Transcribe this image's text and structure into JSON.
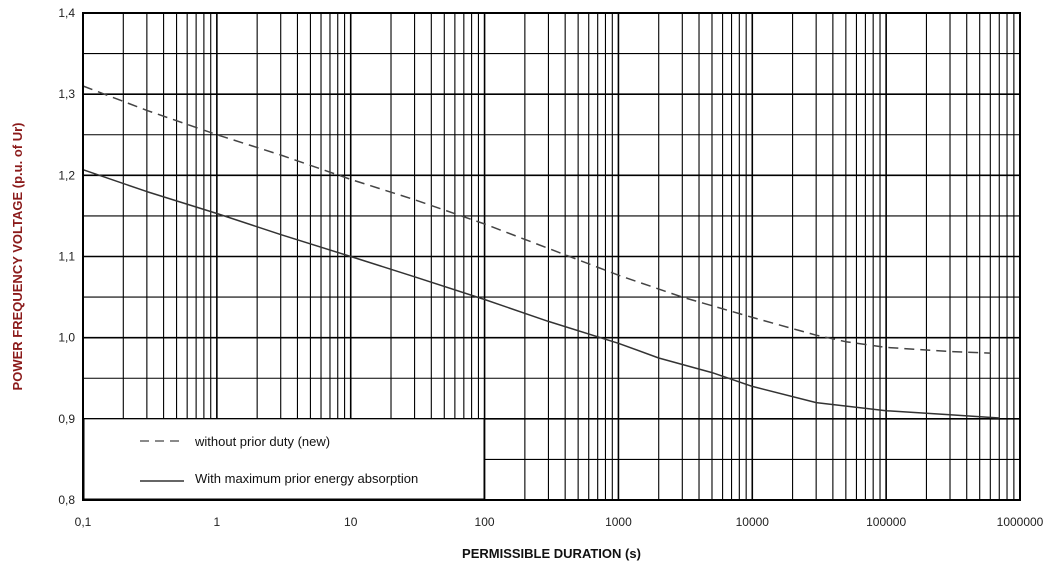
{
  "chart_data": {
    "type": "line",
    "xlabel": "PERMISSIBLE DURATION  (s)",
    "ylabel": "POWER FREQUENCY VOLTAGE  (p.u. of  Ur)",
    "x_scale": "log",
    "xlim": [
      0.1,
      1000000
    ],
    "ylim": [
      0.8,
      1.4
    ],
    "x_ticks": [
      0.1,
      1,
      10,
      100,
      1000,
      10000,
      100000,
      1000000
    ],
    "x_tick_labels": [
      "0,1",
      "1",
      "10",
      "100",
      "1000",
      "10000",
      "100000",
      "1000000"
    ],
    "y_ticks": [
      0.8,
      0.9,
      1.0,
      1.1,
      1.2,
      1.3,
      1.4
    ],
    "y_tick_labels": [
      "0,8",
      "0,9",
      "1,0",
      "1,1",
      "1,2",
      "1,3",
      "1,4"
    ],
    "grid": true,
    "legend_position": "bottom-left",
    "series": [
      {
        "name": "without prior duty (new)",
        "line_style": "dashed",
        "color": "#444444",
        "x": [
          0.1,
          0.3,
          1,
          3,
          10,
          30,
          100,
          300,
          1000,
          3000,
          10000,
          30000,
          50000,
          100000,
          300000,
          600000
        ],
        "y": [
          1.31,
          1.28,
          1.25,
          1.225,
          1.195,
          1.17,
          1.14,
          1.11,
          1.077,
          1.05,
          1.025,
          1.003,
          0.995,
          0.988,
          0.983,
          0.981
        ]
      },
      {
        "name": "With maximum prior energy absorption",
        "line_style": "solid",
        "color": "#333333",
        "x": [
          0.1,
          0.3,
          1,
          3,
          10,
          30,
          100,
          300,
          1000,
          2000,
          5000,
          10000,
          30000,
          100000,
          300000,
          700000
        ],
        "y": [
          1.207,
          1.18,
          1.153,
          1.127,
          1.1,
          1.075,
          1.047,
          1.02,
          0.993,
          0.975,
          0.957,
          0.94,
          0.92,
          0.91,
          0.905,
          0.901
        ]
      }
    ]
  }
}
